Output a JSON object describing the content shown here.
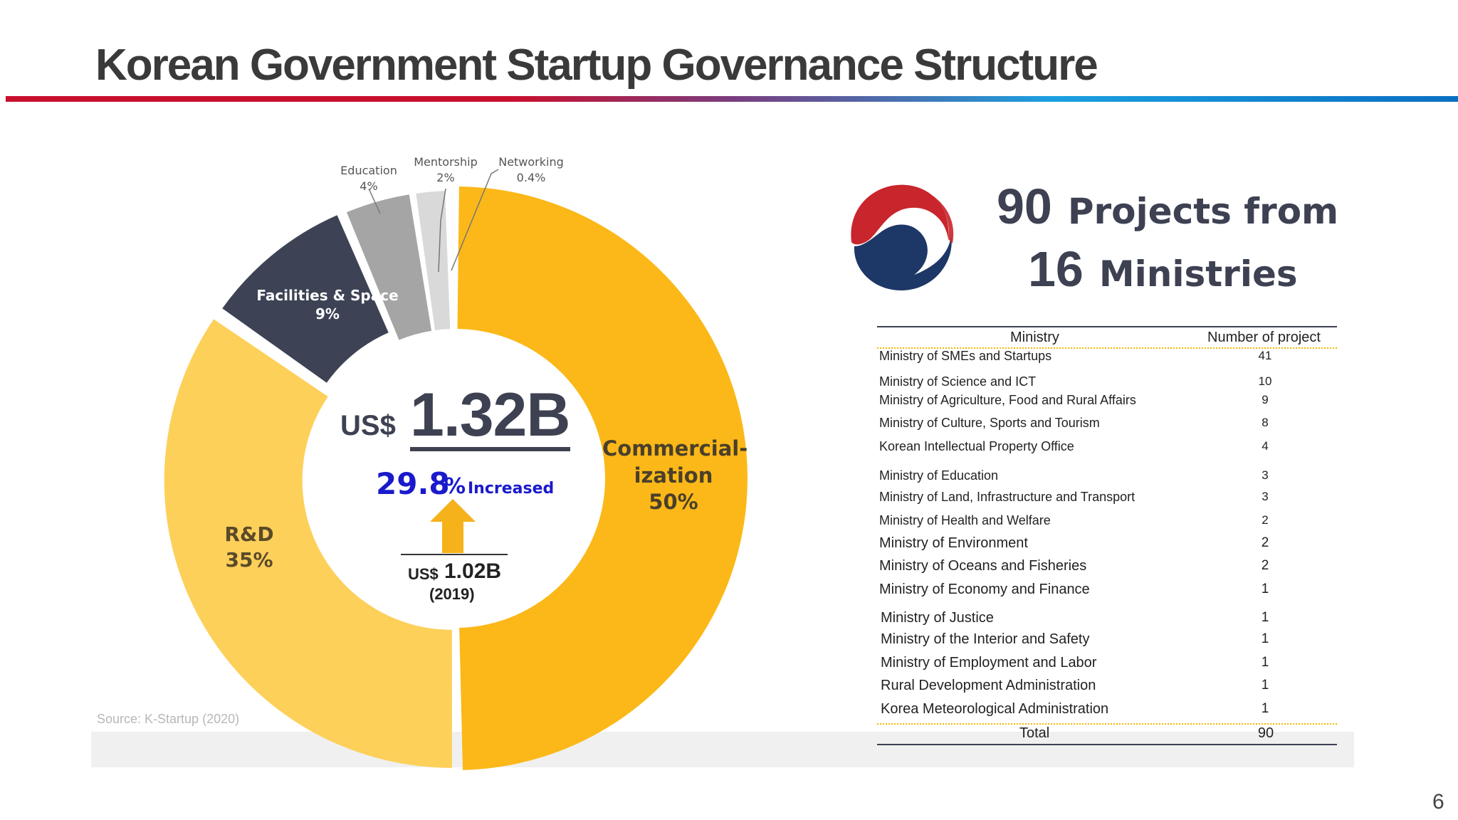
{
  "title": "Korean Government Startup Governance Structure",
  "page_number": "6",
  "source": "Source: K-Startup (2020)",
  "colors": {
    "commercialization": "#fbb818",
    "rnd": "#fdd05a",
    "facilities": "#3d4355",
    "education": "#a5a5a5",
    "mentorship": "#d9d9d9",
    "networking": "#ececec",
    "accent_blue": "#1a1acc",
    "arrow": "#f5b21a"
  },
  "donut_center": {
    "currency": "US$",
    "total": "1.32B",
    "increase_value": "29.8",
    "increase_symbol": "%",
    "increase_label": "Increased",
    "prev_currency": "US$",
    "prev_value": "1.02B",
    "prev_year": "(2019)"
  },
  "segment_labels": {
    "commercialization": [
      "Commercial-",
      "ization",
      "50%"
    ],
    "rnd": [
      "R&D",
      "35%"
    ],
    "facilities": [
      "Facilities & Space",
      "9%"
    ],
    "education": [
      "Education",
      "4%"
    ],
    "mentorship": [
      "Mentorship",
      "2%"
    ],
    "networking": [
      "Networking",
      "0.4%"
    ]
  },
  "chart_data": {
    "type": "pie",
    "style": "donut",
    "title": "US$ 1.32B",
    "categories": [
      "Commercialization",
      "R&D",
      "Facilities & Space",
      "Education",
      "Mentorship",
      "Networking"
    ],
    "values": [
      50,
      35,
      9,
      4,
      2,
      0.4
    ],
    "unit": "%",
    "total": "US$ 1.32B",
    "previous_total": "US$ 1.02B (2019)",
    "change": "29.8 % Increased"
  },
  "headline": {
    "projects_num": "90",
    "projects_text": "Projects from",
    "ministries_num": "16",
    "ministries_text": "Ministries"
  },
  "table": {
    "headers": [
      "Ministry",
      "Number of project"
    ],
    "rows": [
      {
        "name": "Ministry of SMEs and Startups",
        "count": "41"
      },
      {
        "name": "Ministry of Science and ICT",
        "count": "10"
      },
      {
        "name": "Ministry of Agriculture, Food and Rural Affairs",
        "count": "9"
      },
      {
        "name": "Ministry of Culture, Sports and Tourism",
        "count": "8"
      },
      {
        "name": "Korean Intellectual Property Office",
        "count": "4"
      },
      {
        "name": "Ministry of Education",
        "count": "3"
      },
      {
        "name": "Ministry of Land, Infrastructure and Transport",
        "count": "3"
      },
      {
        "name": "Ministry of Health and Welfare",
        "count": "2"
      },
      {
        "name": "Ministry of Environment",
        "count": "2"
      },
      {
        "name": "Ministry of Oceans and Fisheries",
        "count": "2"
      },
      {
        "name": "Ministry of Economy and Finance",
        "count": "1"
      },
      {
        "name": "Ministry of Justice",
        "count": "1"
      },
      {
        "name": "Ministry of the Interior and Safety",
        "count": "1"
      },
      {
        "name": "Ministry of Employment and Labor",
        "count": "1"
      },
      {
        "name": "Rural Development Administration",
        "count": "1"
      },
      {
        "name": "Korea Meteorological Administration",
        "count": "1"
      }
    ],
    "total_label": "Total",
    "total_value": "90"
  }
}
